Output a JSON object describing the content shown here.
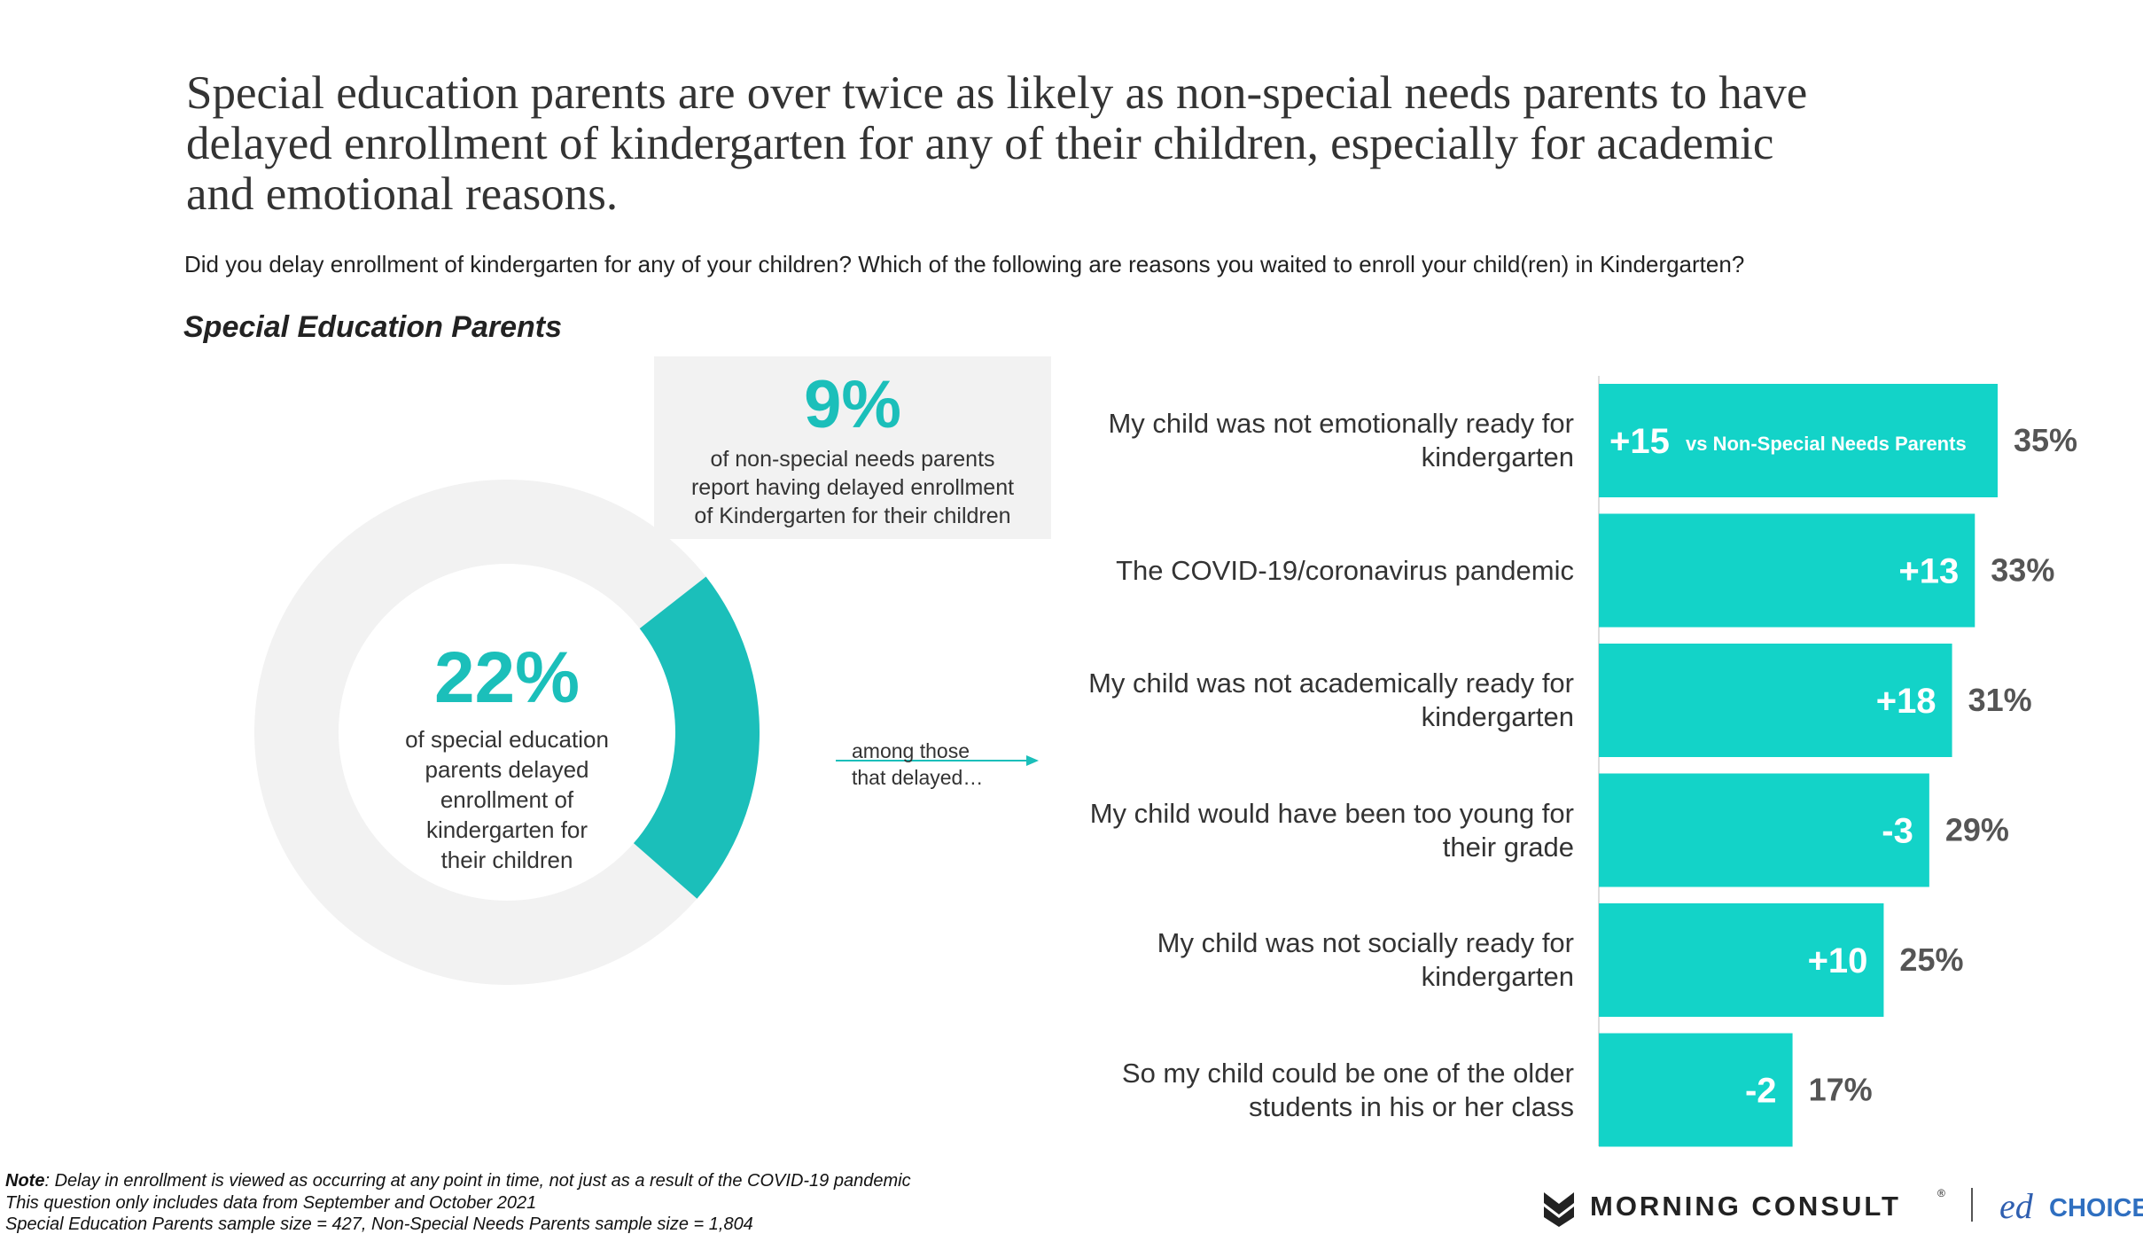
{
  "title": [
    "Special education parents are over twice as likely as non-special needs parents to have",
    "delayed enrollment of kindergarten for any of their children, especially for academic",
    "and emotional reasons."
  ],
  "subtitle": "Did you delay enrollment of kindergarten for any of your children? Which of the following are reasons you waited to enroll your child(ren) in Kindergarten?",
  "section_label": "Special Education Parents",
  "callout": {
    "headline": "9%",
    "lines": [
      "of non-special needs parents",
      "report having delayed enrollment",
      "of Kindergarten for their children"
    ]
  },
  "connector": [
    "among those",
    "that delayed…"
  ],
  "note_label": "Note",
  "notes": [
    ": Delay in enrollment is viewed as occurring at any point in time, not just as a result of the COVID-19 pandemic",
    "This question only includes data from September and October 2021",
    "Special Education Parents sample size = 427, Non-Special Needs Parents sample size = 1,804"
  ],
  "logos": {
    "brand": "MORNING CONSULT",
    "mark": "®",
    "ed": "ed",
    "choice": "CHOICE"
  },
  "chart_data": [
    {
      "type": "donut",
      "values": [
        22
      ],
      "value_labels": [
        "22%"
      ],
      "center_text": [
        "of special education",
        "parents delayed",
        "enrollment of",
        "kindergarten for",
        "their children"
      ],
      "color": "#1bbfba",
      "track_color": "#f2f2f2"
    },
    {
      "type": "hbar",
      "categories": [
        "My child was not emotionally ready for kindergarten",
        "The COVID-19/coronavirus pandemic",
        "My child was not academically ready for kindergarten",
        "My child would have been too young for their grade",
        "My child was not socially ready for kindergarten",
        "So my child could be one of the older students in his or her class"
      ],
      "values": [
        35,
        33,
        31,
        29,
        25,
        17
      ],
      "value_labels": [
        "35%",
        "33%",
        "31%",
        "29%",
        "25%",
        "17%"
      ],
      "difference_labels": [
        "+15",
        "+13",
        "+18",
        "-3",
        "+10",
        "-2"
      ],
      "difference_note": "vs Non-Special Needs Parents",
      "color": "#13d3c8"
    }
  ]
}
